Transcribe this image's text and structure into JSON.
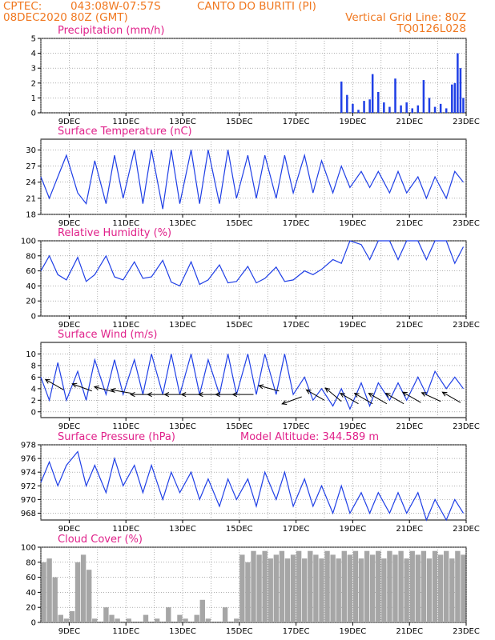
{
  "header": {
    "source": "CPTEC:",
    "coords": "043:08W-07:57S",
    "station": "CANTO DO BURITI (PI)",
    "date": "08DEC2020 80Z (GMT)",
    "grid_note": "Vertical Grid Line: 80Z",
    "code": "TQ0126L028"
  },
  "colors": {
    "header_text": "#f07820",
    "panel_title": "#e0218a",
    "line": "#1f3fe6",
    "bar": "#1f3fe6",
    "cloud": "#a6a6a6",
    "arrow": "#000000",
    "grid": "#808080"
  },
  "x_ticks": [
    "9DEC",
    "11DEC",
    "13DEC",
    "15DEC",
    "17DEC",
    "19DEC",
    "21DEC",
    "23DEC"
  ],
  "x_range_days": [
    8.0,
    23.0
  ],
  "chart_data": [
    {
      "type": "bar",
      "title": "Precipitation (mm/h)",
      "ylim": [
        0,
        5
      ],
      "yticks": [
        0,
        1,
        2,
        3,
        4,
        5
      ],
      "grid": true,
      "x": [
        18.6,
        18.8,
        19.0,
        19.2,
        19.4,
        19.6,
        19.7,
        19.9,
        20.1,
        20.3,
        20.5,
        20.7,
        20.9,
        21.1,
        21.3,
        21.5,
        21.7,
        21.9,
        22.1,
        22.3,
        22.5,
        22.6,
        22.7,
        22.8,
        22.9
      ],
      "values": [
        2.1,
        1.2,
        0.6,
        0.2,
        0.8,
        0.9,
        2.6,
        1.4,
        0.7,
        0.4,
        2.3,
        0.5,
        0.7,
        0.3,
        0.5,
        2.2,
        1.0,
        0.4,
        0.6,
        0.3,
        1.9,
        2.0,
        4.0,
        3.0,
        1.0
      ]
    },
    {
      "type": "line",
      "title": "Surface Temperature (nC)",
      "ylim": [
        18,
        32
      ],
      "yticks": [
        18,
        21,
        24,
        27,
        30
      ],
      "grid": true,
      "x": [
        8.0,
        8.3,
        8.6,
        8.9,
        9.3,
        9.6,
        9.9,
        10.3,
        10.6,
        10.9,
        11.3,
        11.6,
        11.9,
        12.3,
        12.6,
        12.9,
        13.3,
        13.6,
        13.9,
        14.3,
        14.6,
        14.9,
        15.3,
        15.6,
        15.9,
        16.3,
        16.6,
        16.9,
        17.3,
        17.6,
        17.9,
        18.3,
        18.6,
        18.9,
        19.3,
        19.6,
        19.9,
        20.3,
        20.6,
        20.9,
        21.3,
        21.6,
        21.9,
        22.3,
        22.6,
        22.9
      ],
      "y": [
        25,
        21,
        25,
        29,
        22,
        20,
        28,
        20,
        29,
        21,
        30,
        20,
        30,
        19,
        30,
        20,
        30,
        20,
        30,
        20,
        30,
        21,
        29,
        21,
        29,
        21,
        29,
        22,
        29,
        22,
        28,
        22,
        27,
        23,
        26,
        23,
        26,
        22,
        26,
        22,
        25,
        21,
        25,
        21,
        26,
        24
      ]
    },
    {
      "type": "line",
      "title": "Relative Humidity (%)",
      "ylim": [
        0,
        100
      ],
      "yticks": [
        0,
        20,
        40,
        60,
        80,
        100
      ],
      "grid": true,
      "x": [
        8.0,
        8.3,
        8.6,
        8.9,
        9.3,
        9.6,
        9.9,
        10.3,
        10.6,
        10.9,
        11.3,
        11.6,
        11.9,
        12.3,
        12.6,
        12.9,
        13.3,
        13.6,
        13.9,
        14.3,
        14.6,
        14.9,
        15.3,
        15.6,
        15.9,
        16.3,
        16.6,
        16.9,
        17.3,
        17.6,
        17.9,
        18.3,
        18.6,
        18.9,
        19.3,
        19.6,
        19.9,
        20.3,
        20.6,
        20.9,
        21.3,
        21.6,
        21.9,
        22.3,
        22.6,
        22.9
      ],
      "y": [
        60,
        80,
        55,
        48,
        78,
        46,
        55,
        80,
        52,
        48,
        72,
        50,
        52,
        74,
        45,
        40,
        72,
        42,
        48,
        68,
        44,
        46,
        66,
        44,
        50,
        65,
        46,
        48,
        60,
        55,
        62,
        75,
        70,
        100,
        95,
        75,
        100,
        100,
        75,
        100,
        100,
        75,
        100,
        100,
        70,
        92
      ]
    },
    {
      "type": "line",
      "title": "Surface Wind (m/s)",
      "ylim": [
        -1,
        12
      ],
      "yticks": [
        0,
        2,
        4,
        6,
        8,
        10
      ],
      "grid": true,
      "x": [
        8.0,
        8.3,
        8.6,
        8.9,
        9.3,
        9.6,
        9.9,
        10.3,
        10.6,
        10.9,
        11.3,
        11.6,
        11.9,
        12.3,
        12.6,
        12.9,
        13.3,
        13.6,
        13.9,
        14.3,
        14.6,
        14.9,
        15.3,
        15.6,
        15.9,
        16.3,
        16.6,
        16.9,
        17.3,
        17.6,
        17.9,
        18.3,
        18.6,
        18.9,
        19.3,
        19.6,
        19.9,
        20.3,
        20.6,
        20.9,
        21.3,
        21.6,
        21.9,
        22.3,
        22.6,
        22.9
      ],
      "y": [
        6,
        2,
        8.5,
        2,
        7,
        2,
        9,
        3,
        9,
        3,
        9,
        3,
        10,
        3,
        10,
        3,
        10,
        3,
        9,
        3,
        10,
        3,
        10,
        3,
        10,
        3,
        10,
        3,
        6,
        2,
        4,
        1,
        4,
        0.5,
        5,
        1,
        5,
        2,
        5,
        2,
        6,
        3,
        7,
        4,
        6,
        4
      ],
      "vectors": {
        "x": [
          8.8,
          9.8,
          10.6,
          11.2,
          11.9,
          12.5,
          13.1,
          13.7,
          14.3,
          14.9,
          15.5,
          16.4,
          17.2,
          18.0,
          18.6,
          19.2,
          19.7,
          20.2,
          20.8,
          21.4,
          22.1,
          22.8
        ],
        "speed": [
          3.8,
          3.6,
          3.4,
          3.2,
          3.0,
          3.0,
          3.0,
          3.0,
          3.0,
          3.0,
          3.0,
          3.6,
          2.6,
          2.0,
          1.8,
          1.4,
          1.4,
          1.4,
          1.4,
          1.6,
          1.8,
          1.6
        ],
        "dir_deg": [
          150,
          160,
          165,
          170,
          180,
          180,
          180,
          180,
          180,
          180,
          180,
          165,
          200,
          150,
          140,
          150,
          150,
          150,
          150,
          150,
          155,
          150
        ]
      }
    },
    {
      "type": "line",
      "title": "Surface Pressure (hPa)",
      "annotation": "Model Altitude: 344.589 m",
      "ylim": [
        967,
        978
      ],
      "yticks": [
        968,
        970,
        972,
        974,
        976,
        978
      ],
      "grid": true,
      "x": [
        8.0,
        8.3,
        8.6,
        8.9,
        9.3,
        9.6,
        9.9,
        10.3,
        10.6,
        10.9,
        11.3,
        11.6,
        11.9,
        12.3,
        12.6,
        12.9,
        13.3,
        13.6,
        13.9,
        14.3,
        14.6,
        14.9,
        15.3,
        15.6,
        15.9,
        16.3,
        16.6,
        16.9,
        17.3,
        17.6,
        17.9,
        18.3,
        18.6,
        18.9,
        19.3,
        19.6,
        19.9,
        20.3,
        20.6,
        20.9,
        21.3,
        21.6,
        21.9,
        22.3,
        22.6,
        22.9
      ],
      "y": [
        972.5,
        975.5,
        972,
        975,
        977,
        972,
        975,
        971,
        976,
        972,
        975,
        971,
        975,
        970,
        974,
        971,
        974,
        970,
        973,
        969,
        973,
        970,
        973,
        969,
        974,
        970,
        974,
        969,
        973,
        969,
        972,
        968,
        972,
        968,
        971,
        968,
        971,
        968,
        971,
        968,
        971,
        967,
        970,
        967,
        970,
        968
      ]
    },
    {
      "type": "bar",
      "title": "Cloud Cover (%)",
      "ylim": [
        0,
        100
      ],
      "yticks": [
        0,
        20,
        40,
        60,
        80,
        100
      ],
      "grid": true,
      "x": [
        8.1,
        8.3,
        8.5,
        8.7,
        8.9,
        9.1,
        9.3,
        9.5,
        9.7,
        9.9,
        10.1,
        10.3,
        10.5,
        10.7,
        10.9,
        11.1,
        11.3,
        11.5,
        11.7,
        11.9,
        12.1,
        12.3,
        12.5,
        12.7,
        12.9,
        13.1,
        13.3,
        13.5,
        13.7,
        13.9,
        14.1,
        14.3,
        14.5,
        14.7,
        14.9,
        15.1,
        15.3,
        15.5,
        15.7,
        15.9,
        16.1,
        16.3,
        16.5,
        16.7,
        16.9,
        17.1,
        17.3,
        17.5,
        17.7,
        17.9,
        18.1,
        18.3,
        18.5,
        18.7,
        18.9,
        19.1,
        19.3,
        19.5,
        19.7,
        19.9,
        20.1,
        20.3,
        20.5,
        20.7,
        20.9,
        21.1,
        21.3,
        21.5,
        21.7,
        21.9,
        22.1,
        22.3,
        22.5,
        22.7,
        22.9
      ],
      "values": [
        80,
        85,
        60,
        10,
        5,
        15,
        80,
        90,
        70,
        5,
        0,
        20,
        10,
        5,
        0,
        5,
        0,
        0,
        10,
        0,
        5,
        0,
        20,
        0,
        10,
        5,
        0,
        10,
        30,
        5,
        0,
        0,
        20,
        0,
        5,
        90,
        80,
        95,
        90,
        95,
        85,
        90,
        95,
        85,
        90,
        95,
        85,
        95,
        90,
        85,
        95,
        90,
        85,
        95,
        90,
        95,
        85,
        95,
        90,
        95,
        85,
        95,
        90,
        95,
        85,
        95,
        90,
        95,
        85,
        95,
        90,
        95,
        85,
        95,
        90
      ]
    }
  ]
}
